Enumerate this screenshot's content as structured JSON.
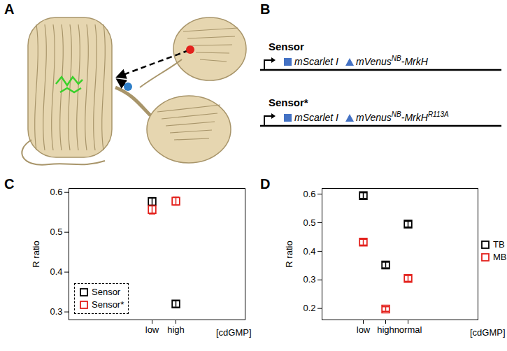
{
  "panel_labels": [
    "A",
    "B",
    "C",
    "D"
  ],
  "diagram": {
    "constructs": [
      {
        "name": "Sensor",
        "genes": [
          {
            "text": "mScarlet I"
          },
          {
            "text": "mVenus",
            "sup": "NB",
            "suffix": "-MrkH"
          }
        ]
      },
      {
        "name": "Sensor*",
        "genes": [
          {
            "text": "mScarlet I"
          },
          {
            "text": "mVenus",
            "sup": "NB",
            "suffix": "-MrkH",
            "suffix_sup": "R113A"
          }
        ]
      }
    ]
  },
  "chart_data": [
    {
      "type": "scatter",
      "categories": [
        "low",
        "high"
      ],
      "x_label": "[cdGMP]",
      "y_label": "R ratio",
      "ylim": [
        0.28,
        0.61
      ],
      "yticks": [
        0.3,
        0.4,
        0.5,
        0.6
      ],
      "legend": "lower left",
      "marker": "square",
      "series": [
        {
          "name": "Sensor",
          "color": "#000000",
          "values": [
            0.577,
            0.32
          ],
          "errors": [
            0.01,
            0.008
          ]
        },
        {
          "name": "Sensor*",
          "color": "#e3211c",
          "values": [
            0.557,
            0.578
          ],
          "errors": [
            0.011,
            0.01
          ]
        }
      ]
    },
    {
      "type": "scatter",
      "categories": [
        "low",
        "high",
        "normal"
      ],
      "x_label": "[cdGMP]",
      "y_label": "R ratio",
      "ylim": [
        0.16,
        0.62
      ],
      "yticks": [
        0.2,
        0.3,
        0.4,
        0.5,
        0.6
      ],
      "legend": "right",
      "marker": "square",
      "series": [
        {
          "name": "TB",
          "color": "#000000",
          "values": [
            0.595,
            0.352,
            0.495
          ],
          "errors": [
            0.01,
            0.01,
            0.01
          ]
        },
        {
          "name": "MB",
          "color": "#e3211c",
          "values": [
            0.432,
            0.198,
            0.305
          ],
          "errors": [
            0.01,
            0.008,
            0.01
          ]
        }
      ]
    }
  ]
}
